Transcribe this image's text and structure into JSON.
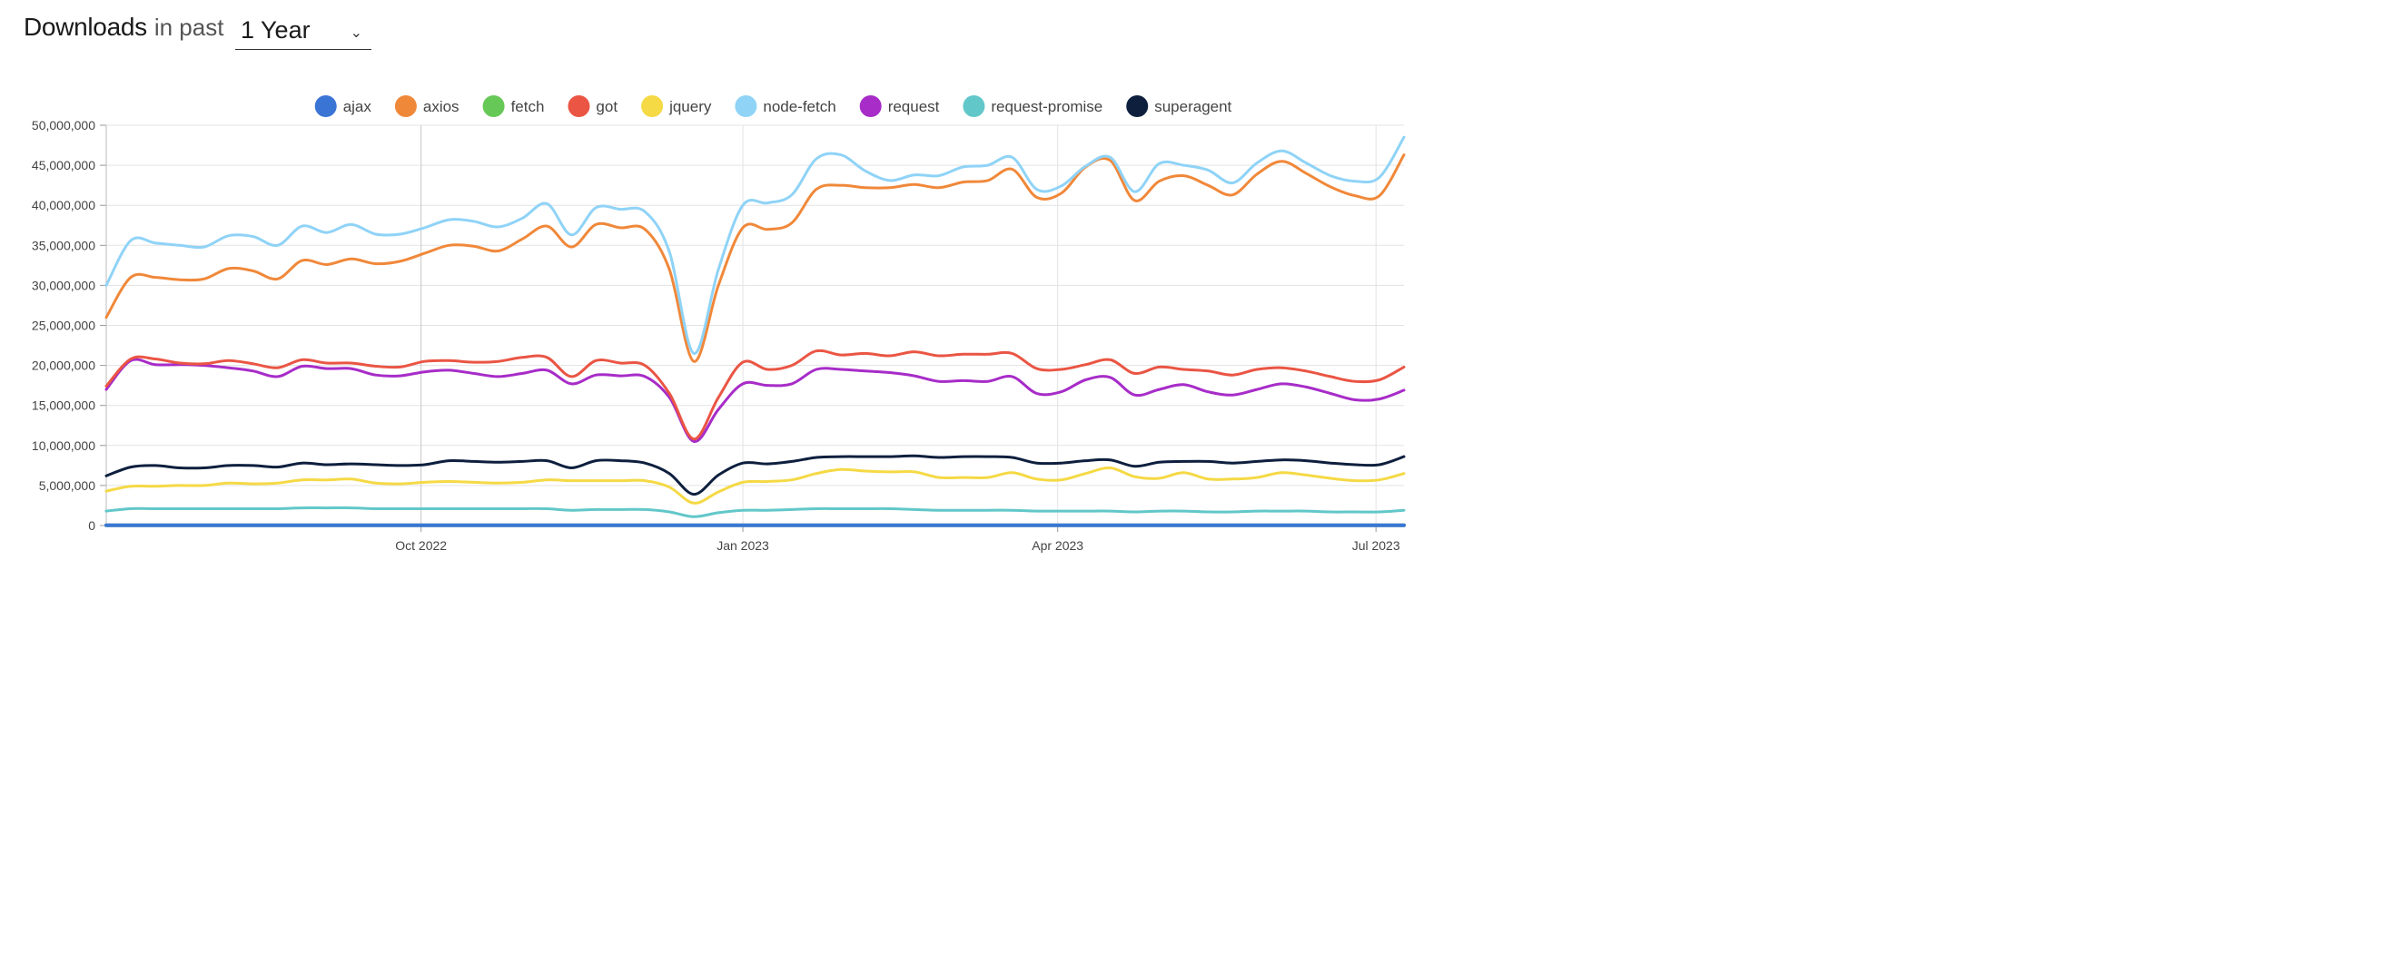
{
  "header": {
    "title_bold": "Downloads",
    "title_light": "in past",
    "range_value": "1 Year",
    "chevron": "⌄"
  },
  "chart_data": {
    "type": "line",
    "title": "",
    "xlabel": "",
    "ylabel": "",
    "ylim": [
      0,
      50000000
    ],
    "y_ticks": [
      0,
      5000000,
      10000000,
      15000000,
      20000000,
      25000000,
      30000000,
      35000000,
      40000000,
      45000000,
      50000000
    ],
    "y_tick_labels": [
      "0",
      "5,000,000",
      "10,000,000",
      "15,000,000",
      "20,000,000",
      "25,000,000",
      "30,000,000",
      "35,000,000",
      "40,000,000",
      "45,000,000",
      "50,000,000"
    ],
    "x_range": [
      "2022-07-03",
      "2023-07-09"
    ],
    "x_ticks": [
      "2022-10-01",
      "2023-01-01",
      "2023-04-01",
      "2023-07-01"
    ],
    "x_tick_labels": [
      "Oct 2022",
      "Jan 2023",
      "Apr 2023",
      "Jul 2023"
    ],
    "grid": true,
    "legend_position": "top-center",
    "x": [
      "2022-07-03",
      "2022-07-10",
      "2022-07-17",
      "2022-07-24",
      "2022-07-31",
      "2022-08-07",
      "2022-08-14",
      "2022-08-21",
      "2022-08-28",
      "2022-09-04",
      "2022-09-11",
      "2022-09-18",
      "2022-09-25",
      "2022-10-02",
      "2022-10-09",
      "2022-10-16",
      "2022-10-23",
      "2022-10-30",
      "2022-11-06",
      "2022-11-13",
      "2022-11-20",
      "2022-11-27",
      "2022-12-04",
      "2022-12-11",
      "2022-12-18",
      "2022-12-25",
      "2023-01-01",
      "2023-01-08",
      "2023-01-15",
      "2023-01-22",
      "2023-01-29",
      "2023-02-05",
      "2023-02-12",
      "2023-02-19",
      "2023-02-26",
      "2023-03-05",
      "2023-03-12",
      "2023-03-19",
      "2023-03-26",
      "2023-04-02",
      "2023-04-09",
      "2023-04-16",
      "2023-04-23",
      "2023-04-30",
      "2023-05-07",
      "2023-05-14",
      "2023-05-21",
      "2023-05-28",
      "2023-06-04",
      "2023-06-11",
      "2023-06-18",
      "2023-06-25",
      "2023-07-02",
      "2023-07-09"
    ],
    "series": [
      {
        "name": "ajax",
        "color": "#3a75d6",
        "values": [
          30000,
          30000,
          30000,
          30000,
          30000,
          30000,
          30000,
          30000,
          30000,
          30000,
          30000,
          30000,
          30000,
          30000,
          30000,
          30000,
          30000,
          30000,
          30000,
          30000,
          30000,
          30000,
          30000,
          30000,
          30000,
          30000,
          30000,
          30000,
          30000,
          30000,
          30000,
          30000,
          30000,
          30000,
          30000,
          30000,
          30000,
          30000,
          30000,
          30000,
          30000,
          30000,
          30000,
          30000,
          30000,
          30000,
          30000,
          30000,
          30000,
          30000,
          30000,
          30000,
          30000,
          30000
        ]
      },
      {
        "name": "axios",
        "color": "#f0883a",
        "values": [
          26000000,
          31000000,
          31000000,
          30700000,
          30800000,
          32100000,
          31800000,
          30800000,
          33100000,
          32600000,
          33300000,
          32700000,
          33000000,
          34000000,
          35000000,
          34900000,
          34300000,
          35800000,
          37400000,
          34800000,
          37600000,
          37200000,
          37000000,
          32000000,
          20500000,
          30000000,
          37200000,
          37000000,
          37800000,
          42000000,
          42500000,
          42200000,
          42200000,
          42600000,
          42200000,
          42900000,
          43100000,
          44500000,
          41000000,
          41500000,
          44800000,
          45600000,
          40600000,
          43000000,
          43700000,
          42500000,
          41300000,
          43900000,
          45500000,
          44000000,
          42300000,
          41200000,
          41200000,
          46300000
        ]
      },
      {
        "name": "fetch",
        "color": "#66c856",
        "values": [
          20000,
          20000,
          20000,
          20000,
          20000,
          20000,
          20000,
          20000,
          20000,
          20000,
          20000,
          20000,
          20000,
          20000,
          20000,
          20000,
          20000,
          20000,
          20000,
          20000,
          20000,
          20000,
          20000,
          20000,
          20000,
          20000,
          20000,
          20000,
          20000,
          20000,
          20000,
          20000,
          20000,
          20000,
          20000,
          20000,
          20000,
          20000,
          20000,
          20000,
          20000,
          20000,
          20000,
          20000,
          20000,
          20000,
          20000,
          20000,
          20000,
          20000,
          20000,
          20000,
          20000,
          20000
        ]
      },
      {
        "name": "got",
        "color": "#ea5544",
        "values": [
          17400000,
          20800000,
          20800000,
          20300000,
          20200000,
          20600000,
          20200000,
          19700000,
          20700000,
          20300000,
          20300000,
          19900000,
          19800000,
          20500000,
          20600000,
          20400000,
          20500000,
          21000000,
          21000000,
          18600000,
          20600000,
          20300000,
          20000000,
          16500000,
          10800000,
          16000000,
          20400000,
          19500000,
          20000000,
          21800000,
          21300000,
          21500000,
          21200000,
          21700000,
          21200000,
          21400000,
          21400000,
          21500000,
          19600000,
          19500000,
          20100000,
          20700000,
          19000000,
          19800000,
          19500000,
          19300000,
          18800000,
          19500000,
          19700000,
          19300000,
          18600000,
          18000000,
          18200000,
          19800000
        ]
      },
      {
        "name": "jquery",
        "color": "#f5d945",
        "values": [
          4300000,
          4900000,
          4900000,
          5000000,
          5000000,
          5300000,
          5200000,
          5300000,
          5700000,
          5700000,
          5800000,
          5300000,
          5200000,
          5400000,
          5500000,
          5400000,
          5300000,
          5400000,
          5700000,
          5600000,
          5600000,
          5600000,
          5600000,
          4800000,
          2800000,
          4200000,
          5400000,
          5500000,
          5700000,
          6500000,
          7000000,
          6800000,
          6700000,
          6700000,
          6000000,
          6000000,
          6000000,
          6600000,
          5800000,
          5700000,
          6500000,
          7200000,
          6100000,
          5900000,
          6600000,
          5800000,
          5800000,
          6000000,
          6600000,
          6300000,
          5900000,
          5600000,
          5700000,
          6500000
        ]
      },
      {
        "name": "node-fetch",
        "color": "#8fd3f7",
        "values": [
          30000000,
          35600000,
          35300000,
          35000000,
          34800000,
          36200000,
          36100000,
          35000000,
          37400000,
          36600000,
          37600000,
          36400000,
          36400000,
          37200000,
          38200000,
          38000000,
          37300000,
          38400000,
          40200000,
          36300000,
          39700000,
          39500000,
          39200000,
          34200000,
          21500000,
          32000000,
          40000000,
          40300000,
          41300000,
          45800000,
          46300000,
          44300000,
          43100000,
          43800000,
          43700000,
          44800000,
          45000000,
          46000000,
          42000000,
          42400000,
          44900000,
          46000000,
          41700000,
          45200000,
          45000000,
          44400000,
          42800000,
          45300000,
          46800000,
          45300000,
          43700000,
          43000000,
          43500000,
          48500000
        ]
      },
      {
        "name": "request",
        "color": "#a72cc8",
        "values": [
          17000000,
          20600000,
          20100000,
          20100000,
          20000000,
          19700000,
          19300000,
          18600000,
          19900000,
          19600000,
          19600000,
          18800000,
          18700000,
          19200000,
          19400000,
          19000000,
          18600000,
          19000000,
          19400000,
          17700000,
          18800000,
          18700000,
          18600000,
          16000000,
          10500000,
          14500000,
          17700000,
          17500000,
          17700000,
          19500000,
          19500000,
          19300000,
          19100000,
          18700000,
          18000000,
          18100000,
          18000000,
          18600000,
          16500000,
          16700000,
          18200000,
          18500000,
          16300000,
          17000000,
          17600000,
          16700000,
          16300000,
          17000000,
          17700000,
          17300000,
          16500000,
          15700000,
          15800000,
          16900000
        ]
      },
      {
        "name": "request-promise",
        "color": "#62c7c9",
        "values": [
          1800000,
          2100000,
          2100000,
          2100000,
          2100000,
          2100000,
          2100000,
          2100000,
          2200000,
          2200000,
          2200000,
          2100000,
          2100000,
          2100000,
          2100000,
          2100000,
          2100000,
          2100000,
          2100000,
          1900000,
          2000000,
          2000000,
          2000000,
          1700000,
          1100000,
          1600000,
          1900000,
          1900000,
          2000000,
          2100000,
          2100000,
          2100000,
          2100000,
          2000000,
          1900000,
          1900000,
          1900000,
          1900000,
          1800000,
          1800000,
          1800000,
          1800000,
          1700000,
          1800000,
          1800000,
          1700000,
          1700000,
          1800000,
          1800000,
          1800000,
          1700000,
          1700000,
          1700000,
          1900000
        ]
      },
      {
        "name": "superagent",
        "color": "#0e1f3e",
        "values": [
          6200000,
          7300000,
          7500000,
          7200000,
          7200000,
          7500000,
          7500000,
          7300000,
          7800000,
          7600000,
          7700000,
          7600000,
          7500000,
          7600000,
          8100000,
          8000000,
          7900000,
          8000000,
          8100000,
          7200000,
          8100000,
          8100000,
          7800000,
          6500000,
          3900000,
          6300000,
          7800000,
          7700000,
          8000000,
          8500000,
          8600000,
          8600000,
          8600000,
          8700000,
          8500000,
          8600000,
          8600000,
          8500000,
          7800000,
          7800000,
          8100000,
          8200000,
          7400000,
          7900000,
          8000000,
          8000000,
          7800000,
          8000000,
          8200000,
          8100000,
          7800000,
          7600000,
          7600000,
          8600000
        ]
      }
    ]
  }
}
